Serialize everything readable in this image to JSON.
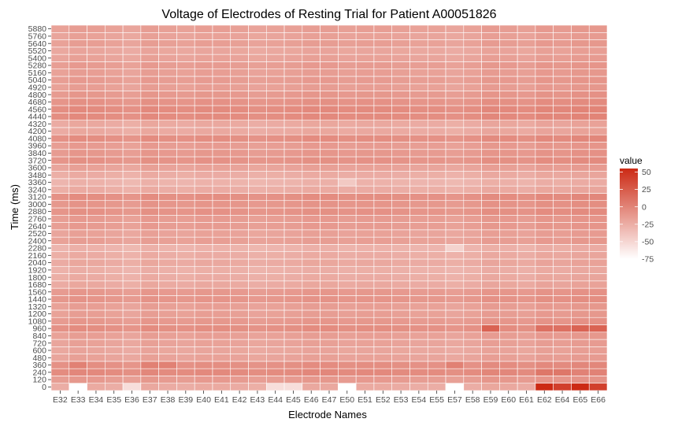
{
  "chart_data": {
    "type": "heatmap",
    "title": "Voltage of Electrodes of Resting Trial for Patient A00051826",
    "xlabel": "Electrode Names",
    "ylabel": "Time (ms)",
    "x_categories": [
      "E32",
      "E33",
      "E34",
      "E35",
      "E36",
      "E37",
      "E38",
      "E39",
      "E40",
      "E41",
      "E42",
      "E43",
      "E44",
      "E45",
      "E46",
      "E47",
      "E50",
      "E51",
      "E52",
      "E53",
      "E54",
      "E55",
      "E57",
      "E58",
      "E59",
      "E60",
      "E61",
      "E62",
      "E64",
      "E65",
      "E66"
    ],
    "y_categories": [
      "0",
      "120",
      "240",
      "360",
      "480",
      "600",
      "720",
      "840",
      "960",
      "1080",
      "1200",
      "1320",
      "1440",
      "1560",
      "1680",
      "1800",
      "1920",
      "2040",
      "2160",
      "2280",
      "2400",
      "2520",
      "2640",
      "2760",
      "2880",
      "3000",
      "3120",
      "3240",
      "3360",
      "3480",
      "3600",
      "3720",
      "3840",
      "3960",
      "4080",
      "4200",
      "4320",
      "4440",
      "4560",
      "4680",
      "4800",
      "4920",
      "5040",
      "5160",
      "5280",
      "5400",
      "5520",
      "5640",
      "5760",
      "5880"
    ],
    "row_base": [
      -25,
      -15,
      -5,
      -8,
      -20,
      -22,
      -20,
      -18,
      -8,
      -14,
      -18,
      -18,
      -12,
      -14,
      -24,
      -26,
      -28,
      -24,
      -26,
      -30,
      -18,
      -20,
      -16,
      -16,
      -10,
      -12,
      -8,
      -26,
      -30,
      -26,
      -20,
      -10,
      -14,
      -16,
      -8,
      -24,
      -24,
      -6,
      -6,
      -10,
      -14,
      -18,
      -16,
      -18,
      -16,
      -20,
      -22,
      -18,
      -20,
      -18
    ],
    "col_offset": [
      0,
      3,
      2,
      0,
      -2,
      3,
      1,
      0,
      2,
      2,
      1,
      -1,
      0,
      1,
      3,
      3,
      1,
      2,
      2,
      1,
      0,
      0,
      -2,
      0,
      4,
      3,
      1,
      5,
      4,
      6,
      6
    ],
    "emphasis": [
      {
        "time": "0",
        "electrodes": [
          "E33",
          "E50",
          "E57"
        ],
        "value": -75
      },
      {
        "time": "0",
        "electrodes": [
          "E36",
          "E44",
          "E45"
        ],
        "value": -55
      },
      {
        "time": "0",
        "electrodes": [
          "E62",
          "E65"
        ],
        "value": 55
      },
      {
        "time": "0",
        "electrodes": [
          "E64",
          "E66"
        ],
        "value": 42
      },
      {
        "time": "960",
        "electrodes": [
          "E59",
          "E65",
          "E66"
        ],
        "value": 20
      },
      {
        "time": "960",
        "electrodes": [
          "E62",
          "E64"
        ],
        "value": 12
      },
      {
        "time": "240",
        "electrodes": [
          "E62",
          "E64"
        ],
        "value": 8
      },
      {
        "time": "360",
        "electrodes": [
          "E33",
          "E37",
          "E38",
          "E57"
        ],
        "value": 2
      },
      {
        "time": "2280",
        "electrodes": [
          "E57"
        ],
        "value": -48
      },
      {
        "time": "3360",
        "electrodes": [
          "E50"
        ],
        "value": -42
      }
    ],
    "color_scale": {
      "low": "#ffffff",
      "high": "#cc2a14",
      "min": -75,
      "max": 55
    },
    "legend": {
      "title": "value",
      "position": "right",
      "breaks": [
        50,
        25,
        0,
        -25,
        -50,
        -75
      ],
      "labels": [
        "50",
        "25",
        "0",
        "-25",
        "-50",
        "-75"
      ]
    }
  }
}
